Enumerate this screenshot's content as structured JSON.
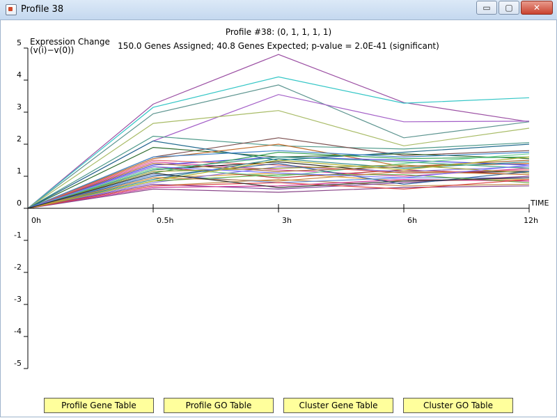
{
  "window": {
    "title": "Profile 38",
    "buttons": {
      "minimize": "▭",
      "maximize": "▢",
      "close": "✕"
    }
  },
  "header": {
    "line1": "Profile #38: (0, 1, 1, 1, 1)",
    "line2": "150.0 Genes Assigned; 40.8 Genes Expected; p-value = 2.0E-41 (significant)"
  },
  "chart_data": {
    "type": "line",
    "ylabel": "Expression Change",
    "ylabel2": "(v(i)−v(0))",
    "xlabel": "TIME",
    "ylim": [
      -5,
      5
    ],
    "yticks": [
      5,
      4,
      3,
      2,
      1,
      0,
      -1,
      -2,
      -3,
      -4,
      -5
    ],
    "x_positions": [
      0,
      1,
      2,
      3,
      4
    ],
    "xtick_labels": [
      "0h",
      "0.5h",
      "3h",
      "6h",
      "12h"
    ],
    "series": [
      {
        "color": "#9b4fa3",
        "values": [
          0,
          3.25,
          4.8,
          3.3,
          2.7
        ]
      },
      {
        "color": "#33c6c6",
        "values": [
          0,
          3.15,
          4.1,
          3.28,
          3.45
        ]
      },
      {
        "color": "#5c948f",
        "values": [
          0,
          2.95,
          3.85,
          2.2,
          2.7
        ]
      },
      {
        "color": "#a35ec7",
        "values": [
          0,
          2.1,
          3.55,
          2.7,
          2.72
        ]
      },
      {
        "color": "#a8bb66",
        "values": [
          0,
          2.65,
          3.05,
          1.95,
          2.5
        ]
      },
      {
        "color": "#4f9a8a",
        "values": [
          0,
          2.25,
          1.95,
          1.85,
          2.05
        ]
      },
      {
        "color": "#7a4e4e",
        "values": [
          0,
          1.6,
          2.2,
          1.65,
          1.8
        ]
      },
      {
        "color": "#2f6d2f",
        "values": [
          0,
          1.9,
          1.6,
          1.7,
          1.55
        ]
      },
      {
        "color": "#226b8e",
        "values": [
          0,
          2.1,
          1.5,
          1.75,
          2.0
        ]
      },
      {
        "color": "#c06a2a",
        "values": [
          0,
          1.55,
          2.0,
          1.3,
          1.4
        ]
      },
      {
        "color": "#d94aa7",
        "values": [
          0,
          1.45,
          1.2,
          1.0,
          1.25
        ]
      },
      {
        "color": "#1c1c1c",
        "values": [
          0,
          1.2,
          1.45,
          1.1,
          1.15
        ]
      },
      {
        "color": "#4a4adf",
        "values": [
          0,
          1.35,
          1.6,
          1.5,
          1.35
        ]
      },
      {
        "color": "#e2a23b",
        "values": [
          0,
          0.95,
          1.1,
          0.85,
          0.9
        ]
      },
      {
        "color": "#38a35b",
        "values": [
          0,
          1.1,
          1.75,
          1.55,
          1.6
        ]
      },
      {
        "color": "#b53030",
        "values": [
          0,
          1.3,
          0.95,
          1.2,
          1.05
        ]
      },
      {
        "color": "#8f7ae0",
        "values": [
          0,
          0.8,
          1.3,
          1.15,
          1.3
        ]
      },
      {
        "color": "#6bcf8f",
        "values": [
          0,
          1.25,
          1.0,
          1.4,
          1.7
        ]
      },
      {
        "color": "#c28f4e",
        "values": [
          0,
          0.7,
          0.9,
          0.7,
          0.75
        ]
      },
      {
        "color": "#5f88d6",
        "values": [
          0,
          1.05,
          0.8,
          0.95,
          0.95
        ]
      },
      {
        "color": "#e06666",
        "values": [
          0,
          1.5,
          1.35,
          1.1,
          1.2
        ]
      },
      {
        "color": "#2d8a8a",
        "values": [
          0,
          0.9,
          1.55,
          1.25,
          1.45
        ]
      },
      {
        "color": "#7f3f98",
        "values": [
          0,
          0.75,
          0.6,
          0.8,
          1.0
        ]
      },
      {
        "color": "#999933",
        "values": [
          0,
          1.15,
          1.25,
          1.35,
          1.1
        ]
      },
      {
        "color": "#cc3399",
        "values": [
          0,
          0.65,
          0.7,
          0.9,
          0.85
        ]
      },
      {
        "color": "#336699",
        "values": [
          0,
          1.0,
          1.4,
          0.75,
          1.15
        ]
      },
      {
        "color": "#66aa44",
        "values": [
          0,
          0.85,
          1.05,
          1.05,
          0.8
        ]
      },
      {
        "color": "#aa6633",
        "values": [
          0,
          1.4,
          1.15,
          1.3,
          1.5
        ]
      },
      {
        "color": "#884488",
        "values": [
          0,
          0.6,
          0.5,
          0.65,
          0.7
        ]
      },
      {
        "color": "#4488cc",
        "values": [
          0,
          1.6,
          1.8,
          1.6,
          1.75
        ]
      },
      {
        "color": "#cc8844",
        "values": [
          0,
          0.95,
          0.85,
          1.15,
          1.05
        ]
      },
      {
        "color": "#44aa88",
        "values": [
          0,
          1.2,
          1.6,
          1.45,
          1.25
        ]
      },
      {
        "color": "#dd4444",
        "values": [
          0,
          0.7,
          0.8,
          0.6,
          0.9
        ]
      },
      {
        "color": "#7777ff",
        "values": [
          0,
          1.3,
          1.1,
          0.95,
          1.35
        ]
      },
      {
        "color": "#b0b030",
        "values": [
          0,
          0.85,
          1.5,
          1.2,
          1.6
        ]
      },
      {
        "color": "#303030",
        "values": [
          0,
          1.1,
          0.65,
          0.85,
          0.95
        ]
      }
    ]
  },
  "buttons": {
    "profile_gene_table": "Profile Gene Table",
    "profile_go_table": "Profile GO Table",
    "cluster_gene_table": "Cluster Gene Table",
    "cluster_go_table": "Cluster GO Table"
  },
  "colors": {
    "button_bg": "#ffff9c",
    "axis": "#000000"
  }
}
